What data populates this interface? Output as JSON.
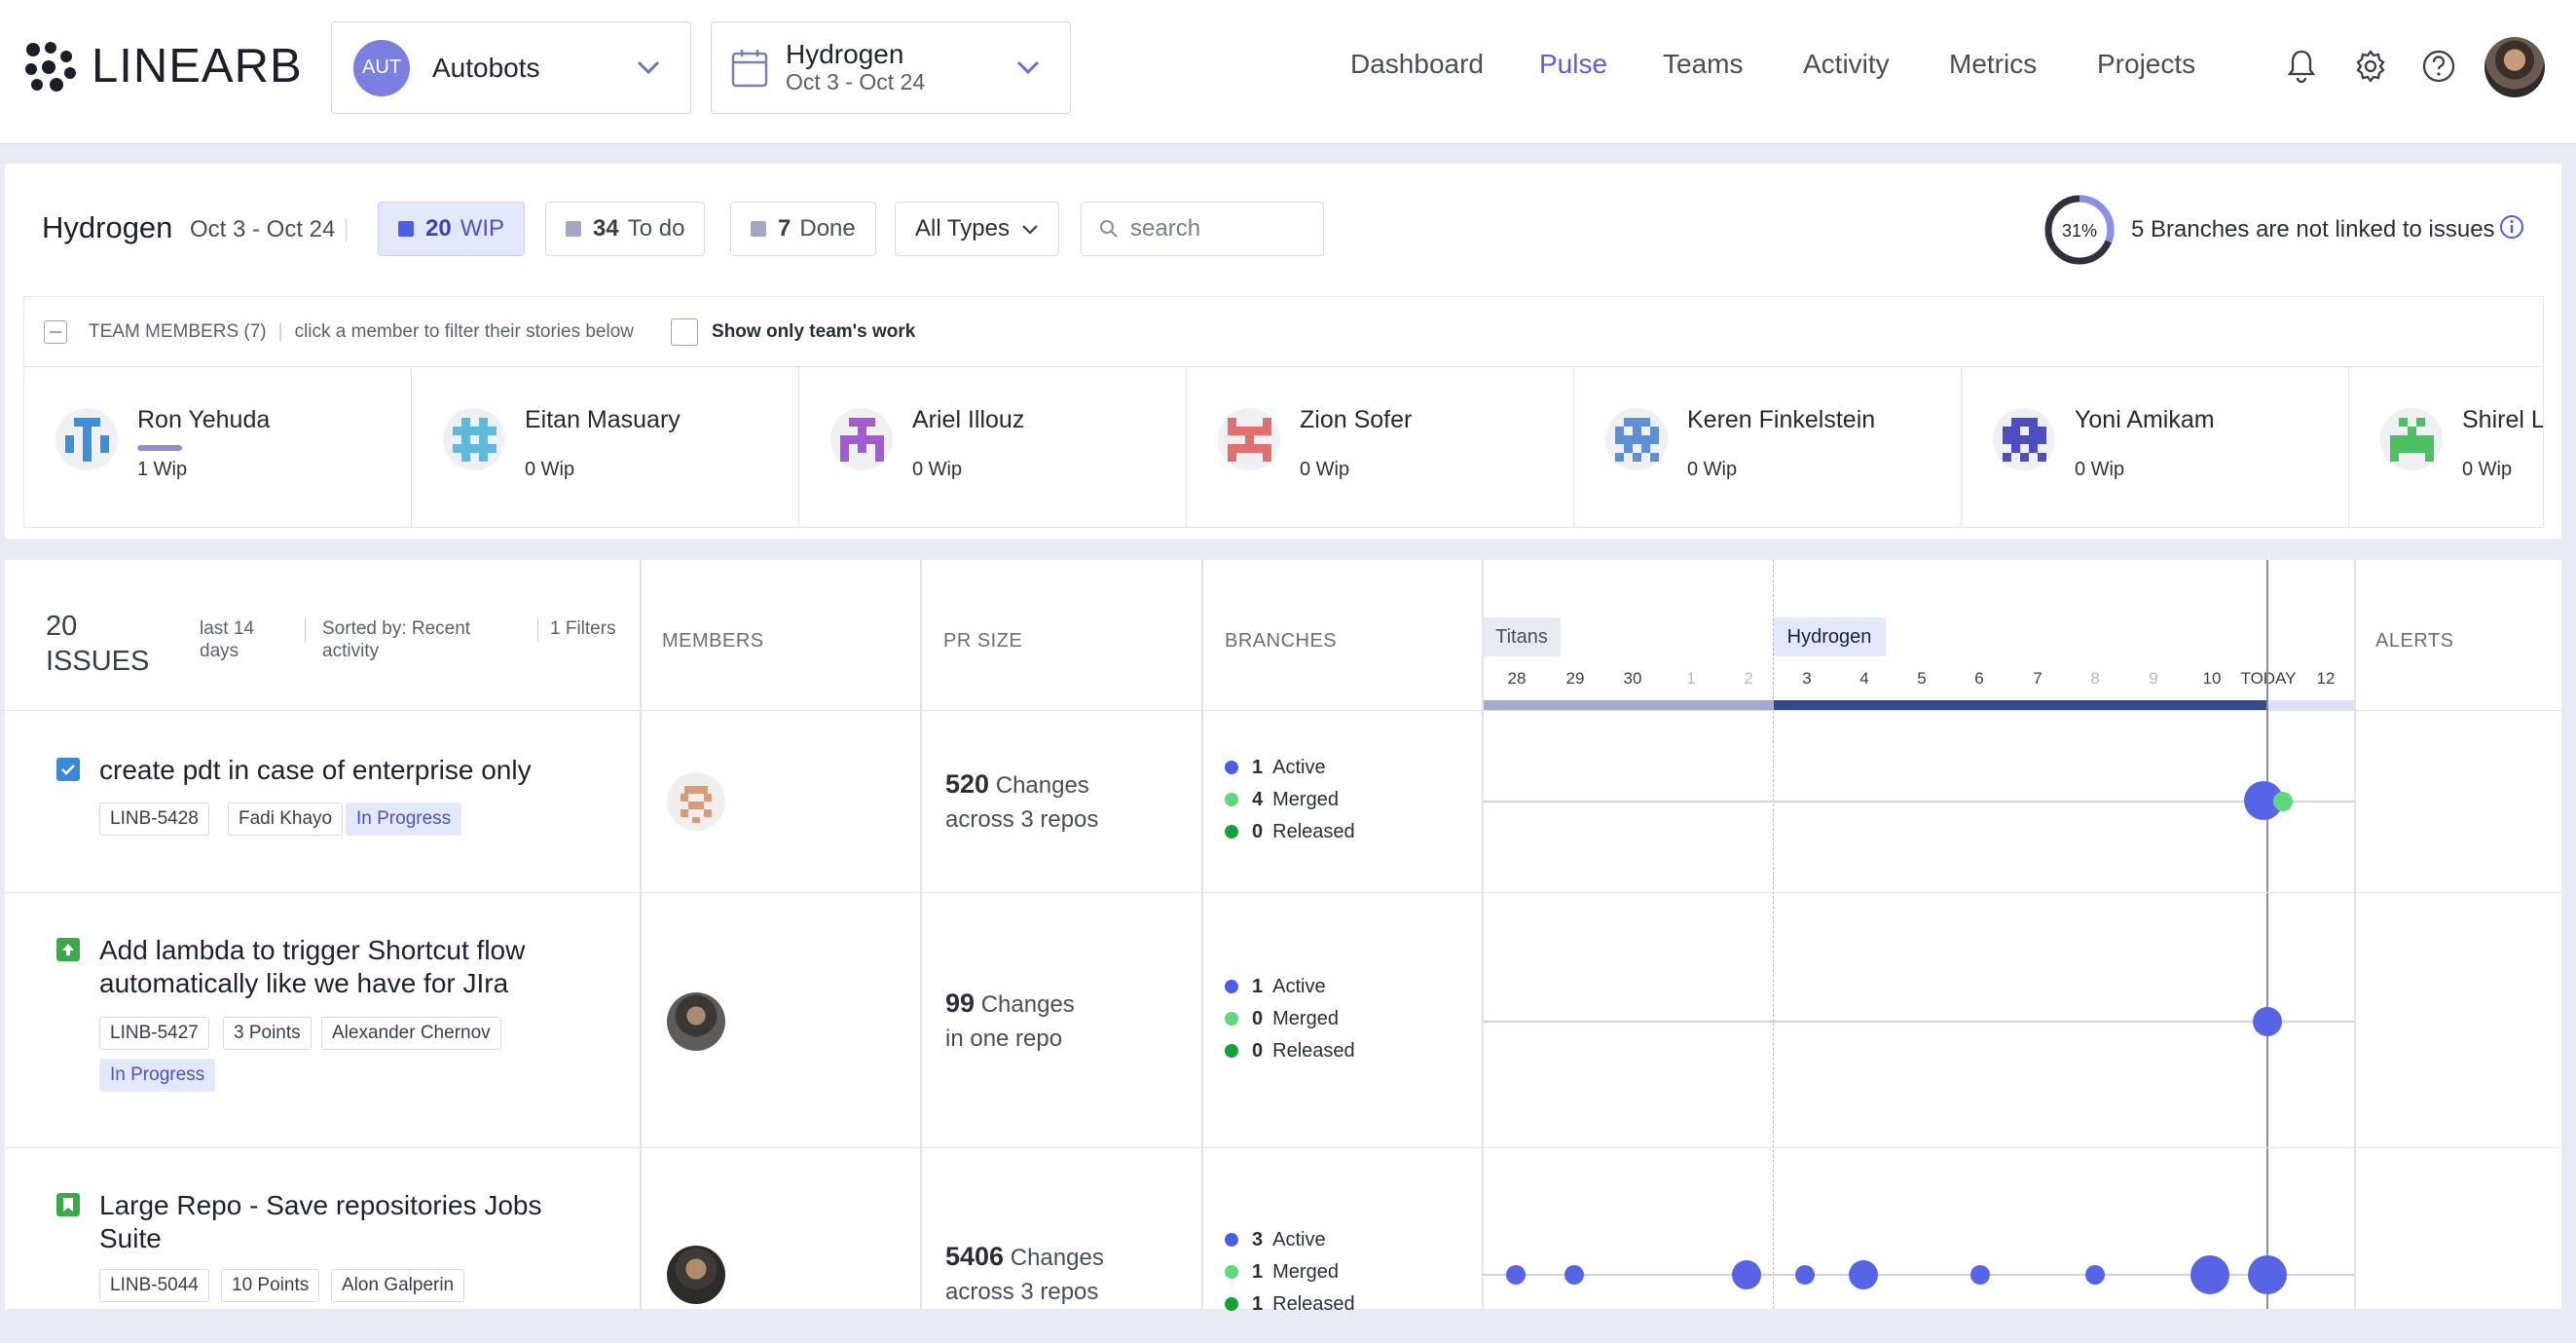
{
  "app": {
    "logo_text": "LINEARB"
  },
  "header": {
    "team_dropdown": {
      "avatar": "AUT",
      "label": "Autobots"
    },
    "sprint_dropdown": {
      "title": "Hydrogen",
      "dates": "Oct 3 - Oct 24"
    },
    "nav": [
      "Dashboard",
      "Pulse",
      "Teams",
      "Activity",
      "Metrics",
      "Projects"
    ],
    "active_nav": "Pulse",
    "icons": [
      "bell-icon",
      "gear-icon",
      "help-icon"
    ]
  },
  "summary": {
    "sprint": "Hydrogen",
    "dates": "Oct 3 - Oct 24",
    "wip": {
      "count": "20",
      "label": "WIP"
    },
    "todo": {
      "count": "34",
      "label": "To do"
    },
    "done": {
      "count": "7",
      "label": "Done"
    },
    "type_filter": "All Types",
    "search_placeholder": "search",
    "linked_percent_label": "31%",
    "linked_fraction": 0.31,
    "not_linked_text": "5 Branches are not linked to issues"
  },
  "team": {
    "header": "TEAM MEMBERS (7)",
    "hint": "click a member to filter their stories below",
    "show_only_label": "Show only team's work",
    "members": [
      {
        "name": "Ron Yehuda",
        "wip": "1 Wip",
        "color": "#3d8fd8"
      },
      {
        "name": "Eitan Masuary",
        "wip": "0 Wip",
        "color": "#5fb9d8"
      },
      {
        "name": "Ariel Illouz",
        "wip": "0 Wip",
        "color": "#a45ad1"
      },
      {
        "name": "Zion Sofer",
        "wip": "0 Wip",
        "color": "#e07070"
      },
      {
        "name": "Keren Finkelstein",
        "wip": "0 Wip",
        "color": "#5b8fd8"
      },
      {
        "name": "Yoni Amikam",
        "wip": "0 Wip",
        "color": "#4d4fc0"
      },
      {
        "name": "Shirel Lu",
        "wip": "0 Wip",
        "color": "#4dc064"
      }
    ]
  },
  "issues": {
    "count": "20",
    "label": "ISSUES",
    "period": "last 14 days",
    "sorted": "Sorted by: Recent activity",
    "filters": "1 Filters",
    "columns": [
      "MEMBERS",
      "PR SIZE",
      "BRANCHES",
      "ALERTS"
    ],
    "sprints": [
      "Titans",
      "Hydrogen"
    ],
    "days": [
      "28",
      "29",
      "30",
      "1",
      "2",
      "3",
      "4",
      "5",
      "6",
      "7",
      "8",
      "9",
      "10",
      "TODAY",
      "12"
    ],
    "rows": [
      {
        "title": "create pdt in case of enterprise only",
        "key": "LINB-5428",
        "assignee": "Fadi Khayo",
        "status": "In Progress",
        "pr_count": "520",
        "pr_unit": "Changes",
        "pr_repos": "across 3 repos",
        "active": "1",
        "merged": "4",
        "released": "0"
      },
      {
        "title": "Add lambda to trigger Shortcut flow automatically like we have for JIra",
        "key": "LINB-5427",
        "points": "3 Points",
        "assignee": "Alexander Chernov",
        "status": "In Progress",
        "pr_count": "99",
        "pr_unit": "Changes",
        "pr_repos": "in one repo",
        "active": "1",
        "merged": "0",
        "released": "0"
      },
      {
        "title": "Large Repo - Save repositories Jobs Suite",
        "key": "LINB-5044",
        "points": "10 Points",
        "assignee": "Alon Galperin",
        "pr_count": "5406",
        "pr_unit": "Changes",
        "pr_repos": "across 3 repos",
        "active": "3",
        "merged": "1",
        "released": "1"
      }
    ],
    "branch_labels": {
      "active": "Active",
      "merged": "Merged",
      "released": "Released"
    }
  },
  "colors": {
    "accent": "#5b5fd6",
    "active_dot": "#4a5ee8",
    "merged_dot": "#5fd87a",
    "released_dot": "#12a23a"
  }
}
